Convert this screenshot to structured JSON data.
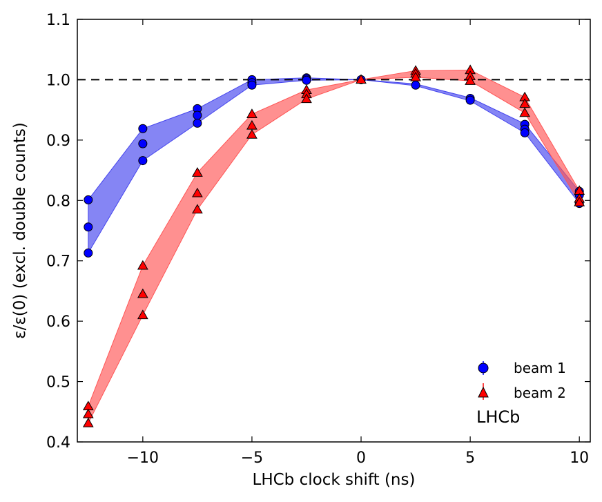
{
  "chart_data": {
    "type": "scatter",
    "title": "",
    "xlabel": "LHCb clock shift (ns)",
    "ylabel": "ε/ε(0) (excl. double counts)",
    "xlim": [
      -13,
      10.5
    ],
    "ylim": [
      0.4,
      1.1
    ],
    "xticks": [
      -10,
      -5,
      0,
      5,
      10
    ],
    "xtick_labels": [
      "−10",
      "−5",
      "0",
      "5",
      "10"
    ],
    "yticks": [
      0.4,
      0.5,
      0.6,
      0.7,
      0.8,
      0.9,
      1.0,
      1.1
    ],
    "ytick_labels": [
      "0.4",
      "0.5",
      "0.6",
      "0.7",
      "0.8",
      "0.9",
      "1.0",
      "1.1"
    ],
    "reference_line": 1.0,
    "legend_position": "bottom-right",
    "annotation": "LHCb",
    "series": [
      {
        "name": "beam 1",
        "marker": "circle",
        "color": "#0000ff",
        "band_color": "#4444ee",
        "points": [
          [
            -12.5,
            0.801
          ],
          [
            -12.5,
            0.756
          ],
          [
            -12.5,
            0.713
          ],
          [
            -10,
            0.919
          ],
          [
            -10,
            0.894
          ],
          [
            -10,
            0.866
          ],
          [
            -7.5,
            0.952
          ],
          [
            -7.5,
            0.941
          ],
          [
            -7.5,
            0.928
          ],
          [
            -5,
            1.0
          ],
          [
            -5,
            0.995
          ],
          [
            -5,
            0.991
          ],
          [
            -2.5,
            1.003
          ],
          [
            -2.5,
            1.001
          ],
          [
            -2.5,
            0.999
          ],
          [
            0,
            1.0
          ],
          [
            2.5,
            0.991
          ],
          [
            5,
            0.969
          ],
          [
            5,
            0.966
          ],
          [
            7.5,
            0.926
          ],
          [
            7.5,
            0.918
          ],
          [
            7.5,
            0.912
          ],
          [
            10,
            0.815
          ],
          [
            10,
            0.809
          ],
          [
            10,
            0.795
          ]
        ],
        "band_upper": [
          [
            -12.5,
            0.801
          ],
          [
            -10,
            0.919
          ],
          [
            -7.5,
            0.952
          ],
          [
            -5,
            1.0
          ],
          [
            -2.5,
            1.003
          ],
          [
            0,
            1.0
          ],
          [
            2.5,
            0.993
          ],
          [
            5,
            0.97
          ],
          [
            7.5,
            0.927
          ],
          [
            10,
            0.815
          ]
        ],
        "band_lower": [
          [
            -12.5,
            0.713
          ],
          [
            -10,
            0.866
          ],
          [
            -7.5,
            0.928
          ],
          [
            -5,
            0.991
          ],
          [
            -2.5,
            0.999
          ],
          [
            0,
            1.0
          ],
          [
            2.5,
            0.99
          ],
          [
            5,
            0.965
          ],
          [
            7.5,
            0.912
          ],
          [
            10,
            0.795
          ]
        ]
      },
      {
        "name": "beam 2",
        "marker": "triangle",
        "color": "#ff0000",
        "band_color": "#ff5555",
        "points": [
          [
            -12.5,
            0.459
          ],
          [
            -12.5,
            0.446
          ],
          [
            -12.5,
            0.431
          ],
          [
            -10,
            0.692
          ],
          [
            -10,
            0.645
          ],
          [
            -10,
            0.61
          ],
          [
            -7.5,
            0.846
          ],
          [
            -7.5,
            0.812
          ],
          [
            -7.5,
            0.785
          ],
          [
            -5,
            0.943
          ],
          [
            -5,
            0.924
          ],
          [
            -5,
            0.909
          ],
          [
            -2.5,
            0.983
          ],
          [
            -2.5,
            0.976
          ],
          [
            -2.5,
            0.968
          ],
          [
            0,
            1.0
          ],
          [
            2.5,
            1.015
          ],
          [
            2.5,
            1.01
          ],
          [
            2.5,
            1.004
          ],
          [
            5,
            1.016
          ],
          [
            5,
            1.006
          ],
          [
            5,
            0.998
          ],
          [
            7.5,
            0.971
          ],
          [
            7.5,
            0.96
          ],
          [
            7.5,
            0.945
          ],
          [
            10,
            0.816
          ],
          [
            10,
            0.803
          ],
          [
            10,
            0.797
          ]
        ],
        "band_upper": [
          [
            -12.5,
            0.459
          ],
          [
            -10,
            0.692
          ],
          [
            -7.5,
            0.846
          ],
          [
            -5,
            0.943
          ],
          [
            -2.5,
            0.983
          ],
          [
            0,
            1.0
          ],
          [
            2.5,
            1.015
          ],
          [
            5,
            1.016
          ],
          [
            7.5,
            0.971
          ],
          [
            10,
            0.816
          ]
        ],
        "band_lower": [
          [
            -12.5,
            0.431
          ],
          [
            -10,
            0.61
          ],
          [
            -7.5,
            0.785
          ],
          [
            -5,
            0.909
          ],
          [
            -2.5,
            0.968
          ],
          [
            0,
            1.0
          ],
          [
            2.5,
            1.004
          ],
          [
            5,
            0.998
          ],
          [
            7.5,
            0.945
          ],
          [
            10,
            0.797
          ]
        ]
      }
    ]
  }
}
